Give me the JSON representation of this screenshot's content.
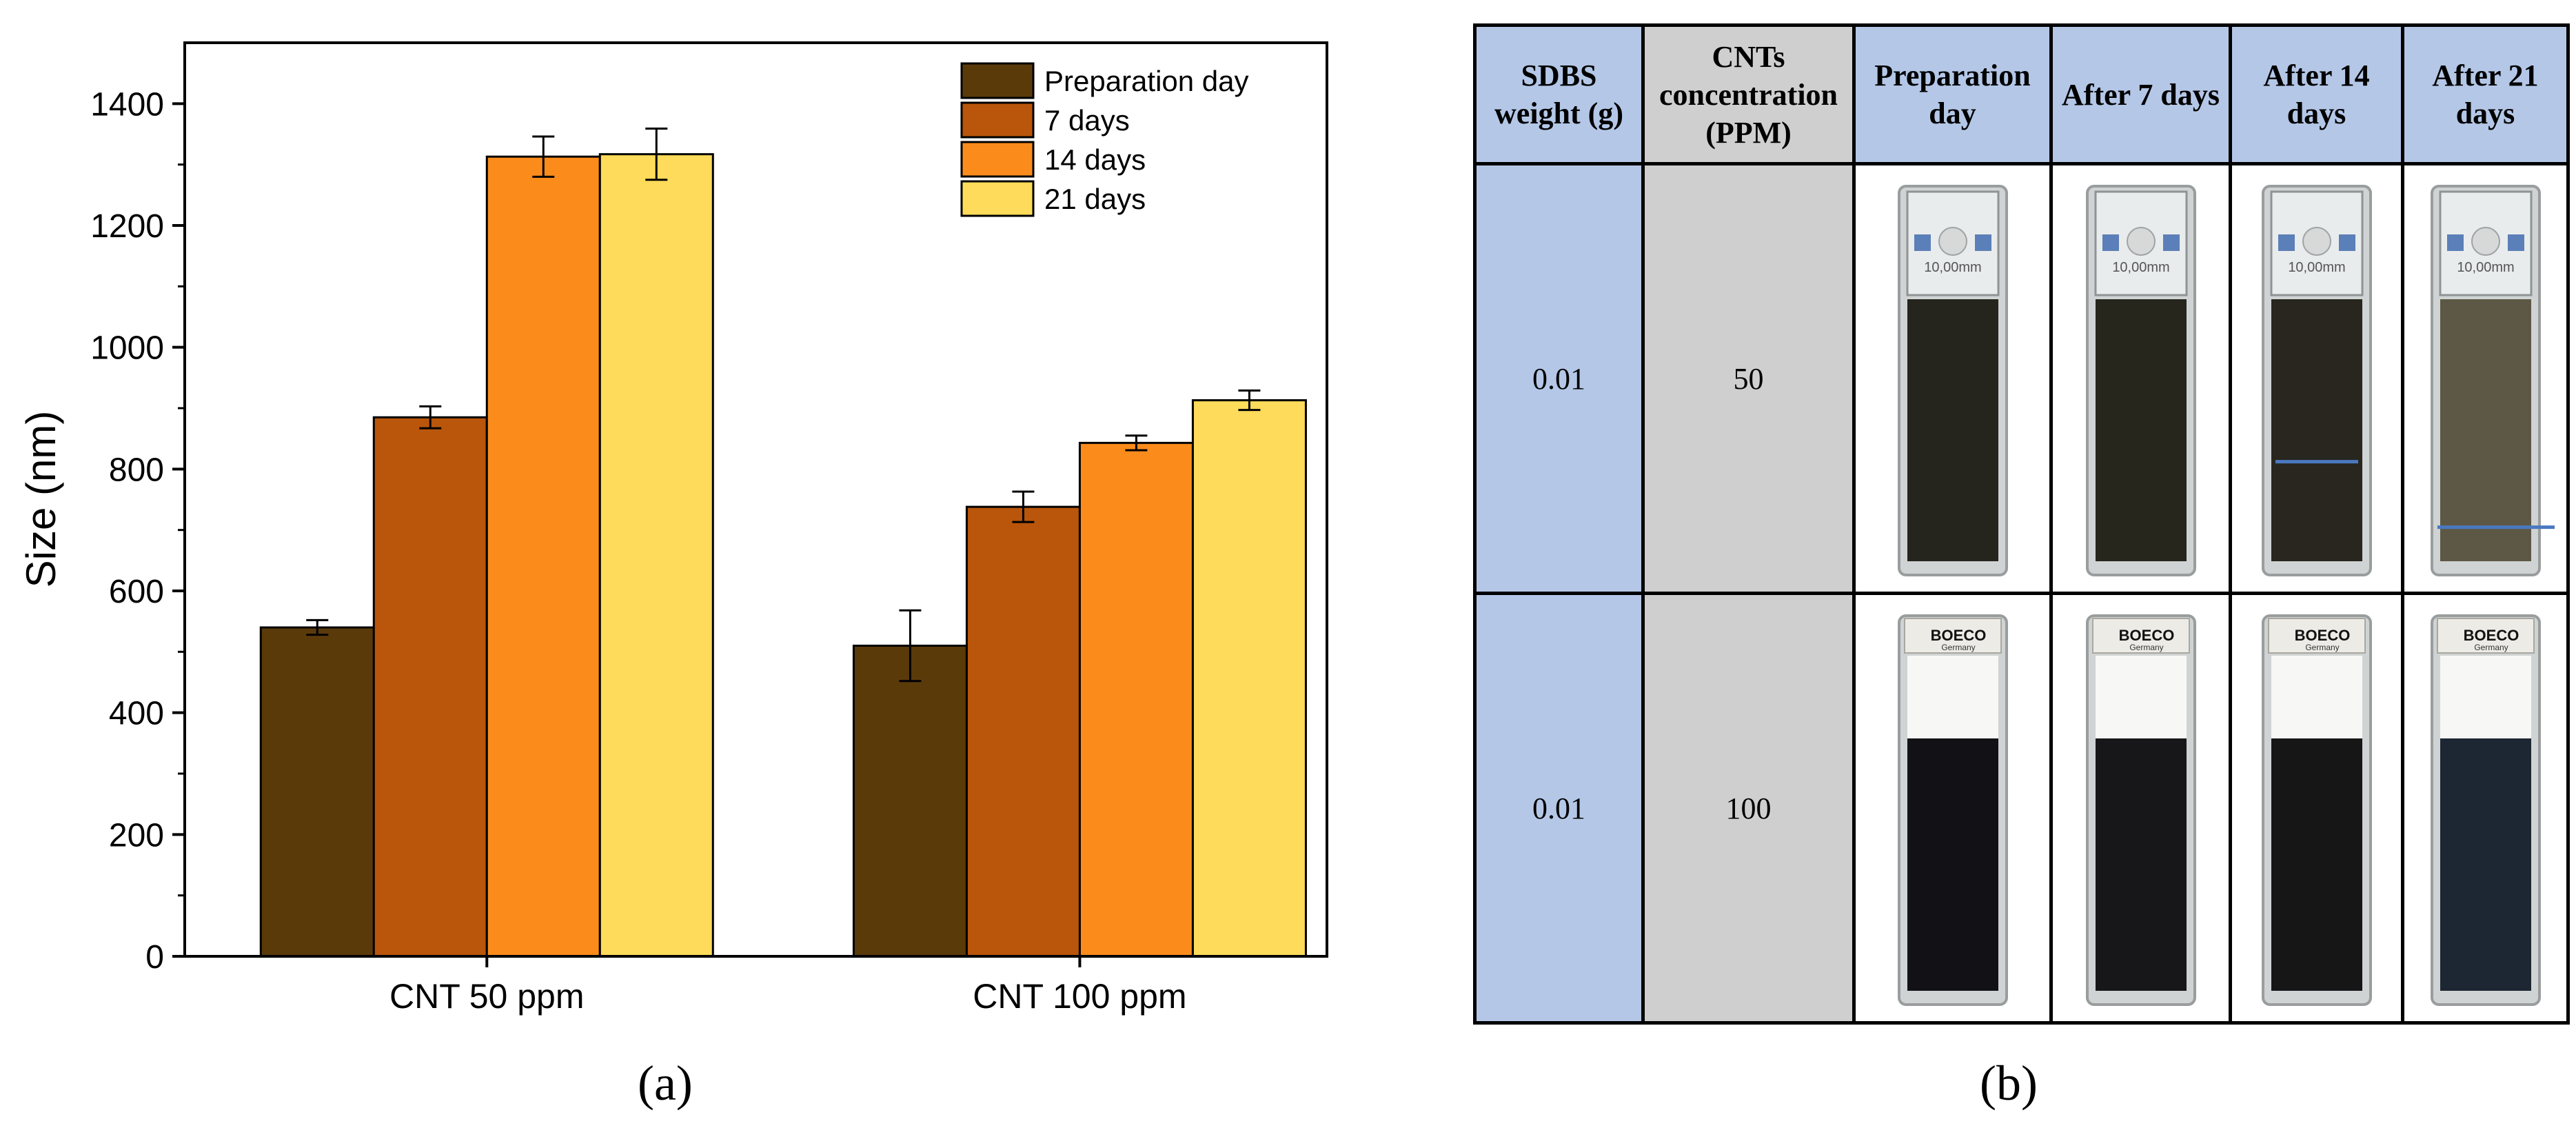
{
  "chart_data": {
    "type": "bar",
    "categories": [
      "CNT 50 ppm",
      "CNT 100 ppm"
    ],
    "series": [
      {
        "name": "Preparation day",
        "color": "#5b3a0a",
        "values": [
          540,
          510
        ],
        "errors": [
          12,
          58
        ]
      },
      {
        "name": "7 days",
        "color": "#b9560b",
        "values": [
          885,
          738
        ],
        "errors": [
          18,
          25
        ]
      },
      {
        "name": "14 days",
        "color": "#fb8c1c",
        "values": [
          1313,
          843
        ],
        "errors": [
          33,
          12
        ]
      },
      {
        "name": "21 days",
        "color": "#fedb5a",
        "values": [
          1317,
          913
        ],
        "errors": [
          42,
          16
        ]
      }
    ],
    "title": "",
    "xlabel": "",
    "ylabel": "Size (nm)",
    "ylim": [
      0,
      1500
    ],
    "yticks": [
      0,
      200,
      400,
      600,
      800,
      1000,
      1200,
      1400
    ],
    "legend_position": "top-right",
    "grid": false
  },
  "captions": {
    "a": "(a)",
    "b": "(b)"
  },
  "table": {
    "headers": [
      "SDBS weight (g)",
      "CNTs concentration (PPM)",
      "Preparation day",
      "After 7 days",
      "After 14 days",
      "After 21 days"
    ],
    "rows": [
      {
        "sdbs_weight": "0.01",
        "concentration": "50",
        "cuvette_label": "10,00mm",
        "liquid_colors": [
          "#25251d",
          "#26261d",
          "#28261e",
          "#5d5845"
        ],
        "line_levels": [
          null,
          null,
          0.62,
          0.87
        ]
      },
      {
        "sdbs_weight": "0.01",
        "concentration": "100",
        "cuvette_label": "BOECO",
        "cuvette_sublabel": "Germany",
        "liquid_colors": [
          "#121216",
          "#17171a",
          "#161617",
          "#1d2633"
        ],
        "line_levels": [
          null,
          null,
          null,
          null
        ]
      }
    ]
  }
}
